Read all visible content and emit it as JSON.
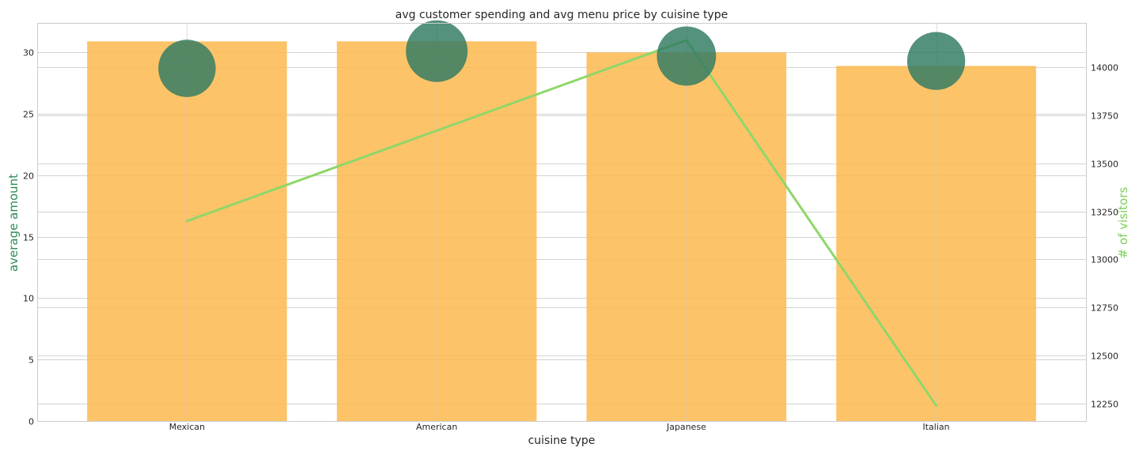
{
  "chart_data": {
    "type": "bar",
    "title": "avg customer spending and avg menu price by cuisine type",
    "xlabel": "cuisine type",
    "ylabel": "average amount",
    "ylabel_right": "# of visitors",
    "categories": [
      "Mexican",
      "American",
      "Japanese",
      "Italian"
    ],
    "ylim": [
      0,
      32.4
    ],
    "yticks": [
      0,
      5,
      10,
      15,
      20,
      25,
      30
    ],
    "ylim_right": [
      12160,
      14230
    ],
    "yticks_right": [
      12250,
      12500,
      12750,
      13000,
      13250,
      13500,
      13750,
      14000
    ],
    "grid": true,
    "series": [
      {
        "name": "avg customer spending",
        "kind": "bar",
        "axis": "left",
        "color": "#fdb94d",
        "values": [
          30.9,
          30.9,
          30.0,
          28.9
        ]
      },
      {
        "name": "avg menu price",
        "kind": "scatter",
        "axis": "left",
        "color": "#2e7a62",
        "values": [
          28.7,
          30.1,
          29.7,
          29.3
        ],
        "marker_size_relative": [
          0.93,
          1.0,
          0.96,
          0.94
        ]
      },
      {
        "name": "# of visitors",
        "kind": "line",
        "axis": "right",
        "color": "#8fd769",
        "values": [
          13200,
          13670,
          14140,
          12240
        ]
      }
    ],
    "label_colors": {
      "left": "#2e8b57",
      "right": "#7ccf5a"
    }
  }
}
